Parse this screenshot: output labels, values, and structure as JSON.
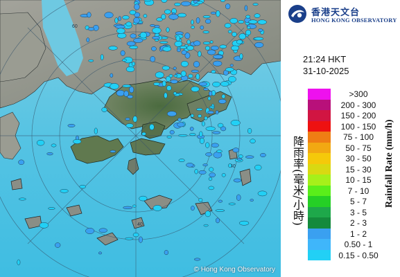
{
  "logo": {
    "name_cn": "香港天文台",
    "name_en": "HONG KONG OBSERVATORY"
  },
  "time": "21:24 HKT",
  "date": "31-10-2025",
  "legend": {
    "title_cn": "降雨率(毫米/小時)",
    "title_en": "Rainfall Rate (mm/h)",
    "scale": [
      {
        "range": ">300",
        "color": "#ee11ee"
      },
      {
        "range": "200 - 300",
        "color": "#b8107a"
      },
      {
        "range": "150 - 200",
        "color": "#d11542"
      },
      {
        "range": "100 - 150",
        "color": "#ee1111"
      },
      {
        "range": "75 - 100",
        "color": "#ef7d14"
      },
      {
        "range": "50 - 75",
        "color": "#f2a812"
      },
      {
        "range": "30 - 50",
        "color": "#f5c90a"
      },
      {
        "range": "15 - 30",
        "color": "#d9d912"
      },
      {
        "range": "10 - 15",
        "color": "#a6f01a"
      },
      {
        "range": "7 - 10",
        "color": "#5aee1a"
      },
      {
        "range": "5 - 7",
        "color": "#25d025"
      },
      {
        "range": "3 - 5",
        "color": "#1ea84a"
      },
      {
        "range": "2 - 3",
        "color": "#148a3c"
      },
      {
        "range": "1 - 2",
        "color": "#3aa0f0"
      },
      {
        "range": "0.50 - 1",
        "color": "#3fb6fa"
      },
      {
        "range": "0.15 - 0.50",
        "color": "#22d0f5"
      }
    ]
  },
  "map": {
    "range_rings": [
      "60",
      "40",
      "40"
    ],
    "copyright": "© Hong Kong Observatory",
    "colors": {
      "sea": "#5cc6e2",
      "land": "#8a8e86",
      "rain_light": "#22d0f5",
      "rain_medium": "#3aa0f0"
    }
  }
}
